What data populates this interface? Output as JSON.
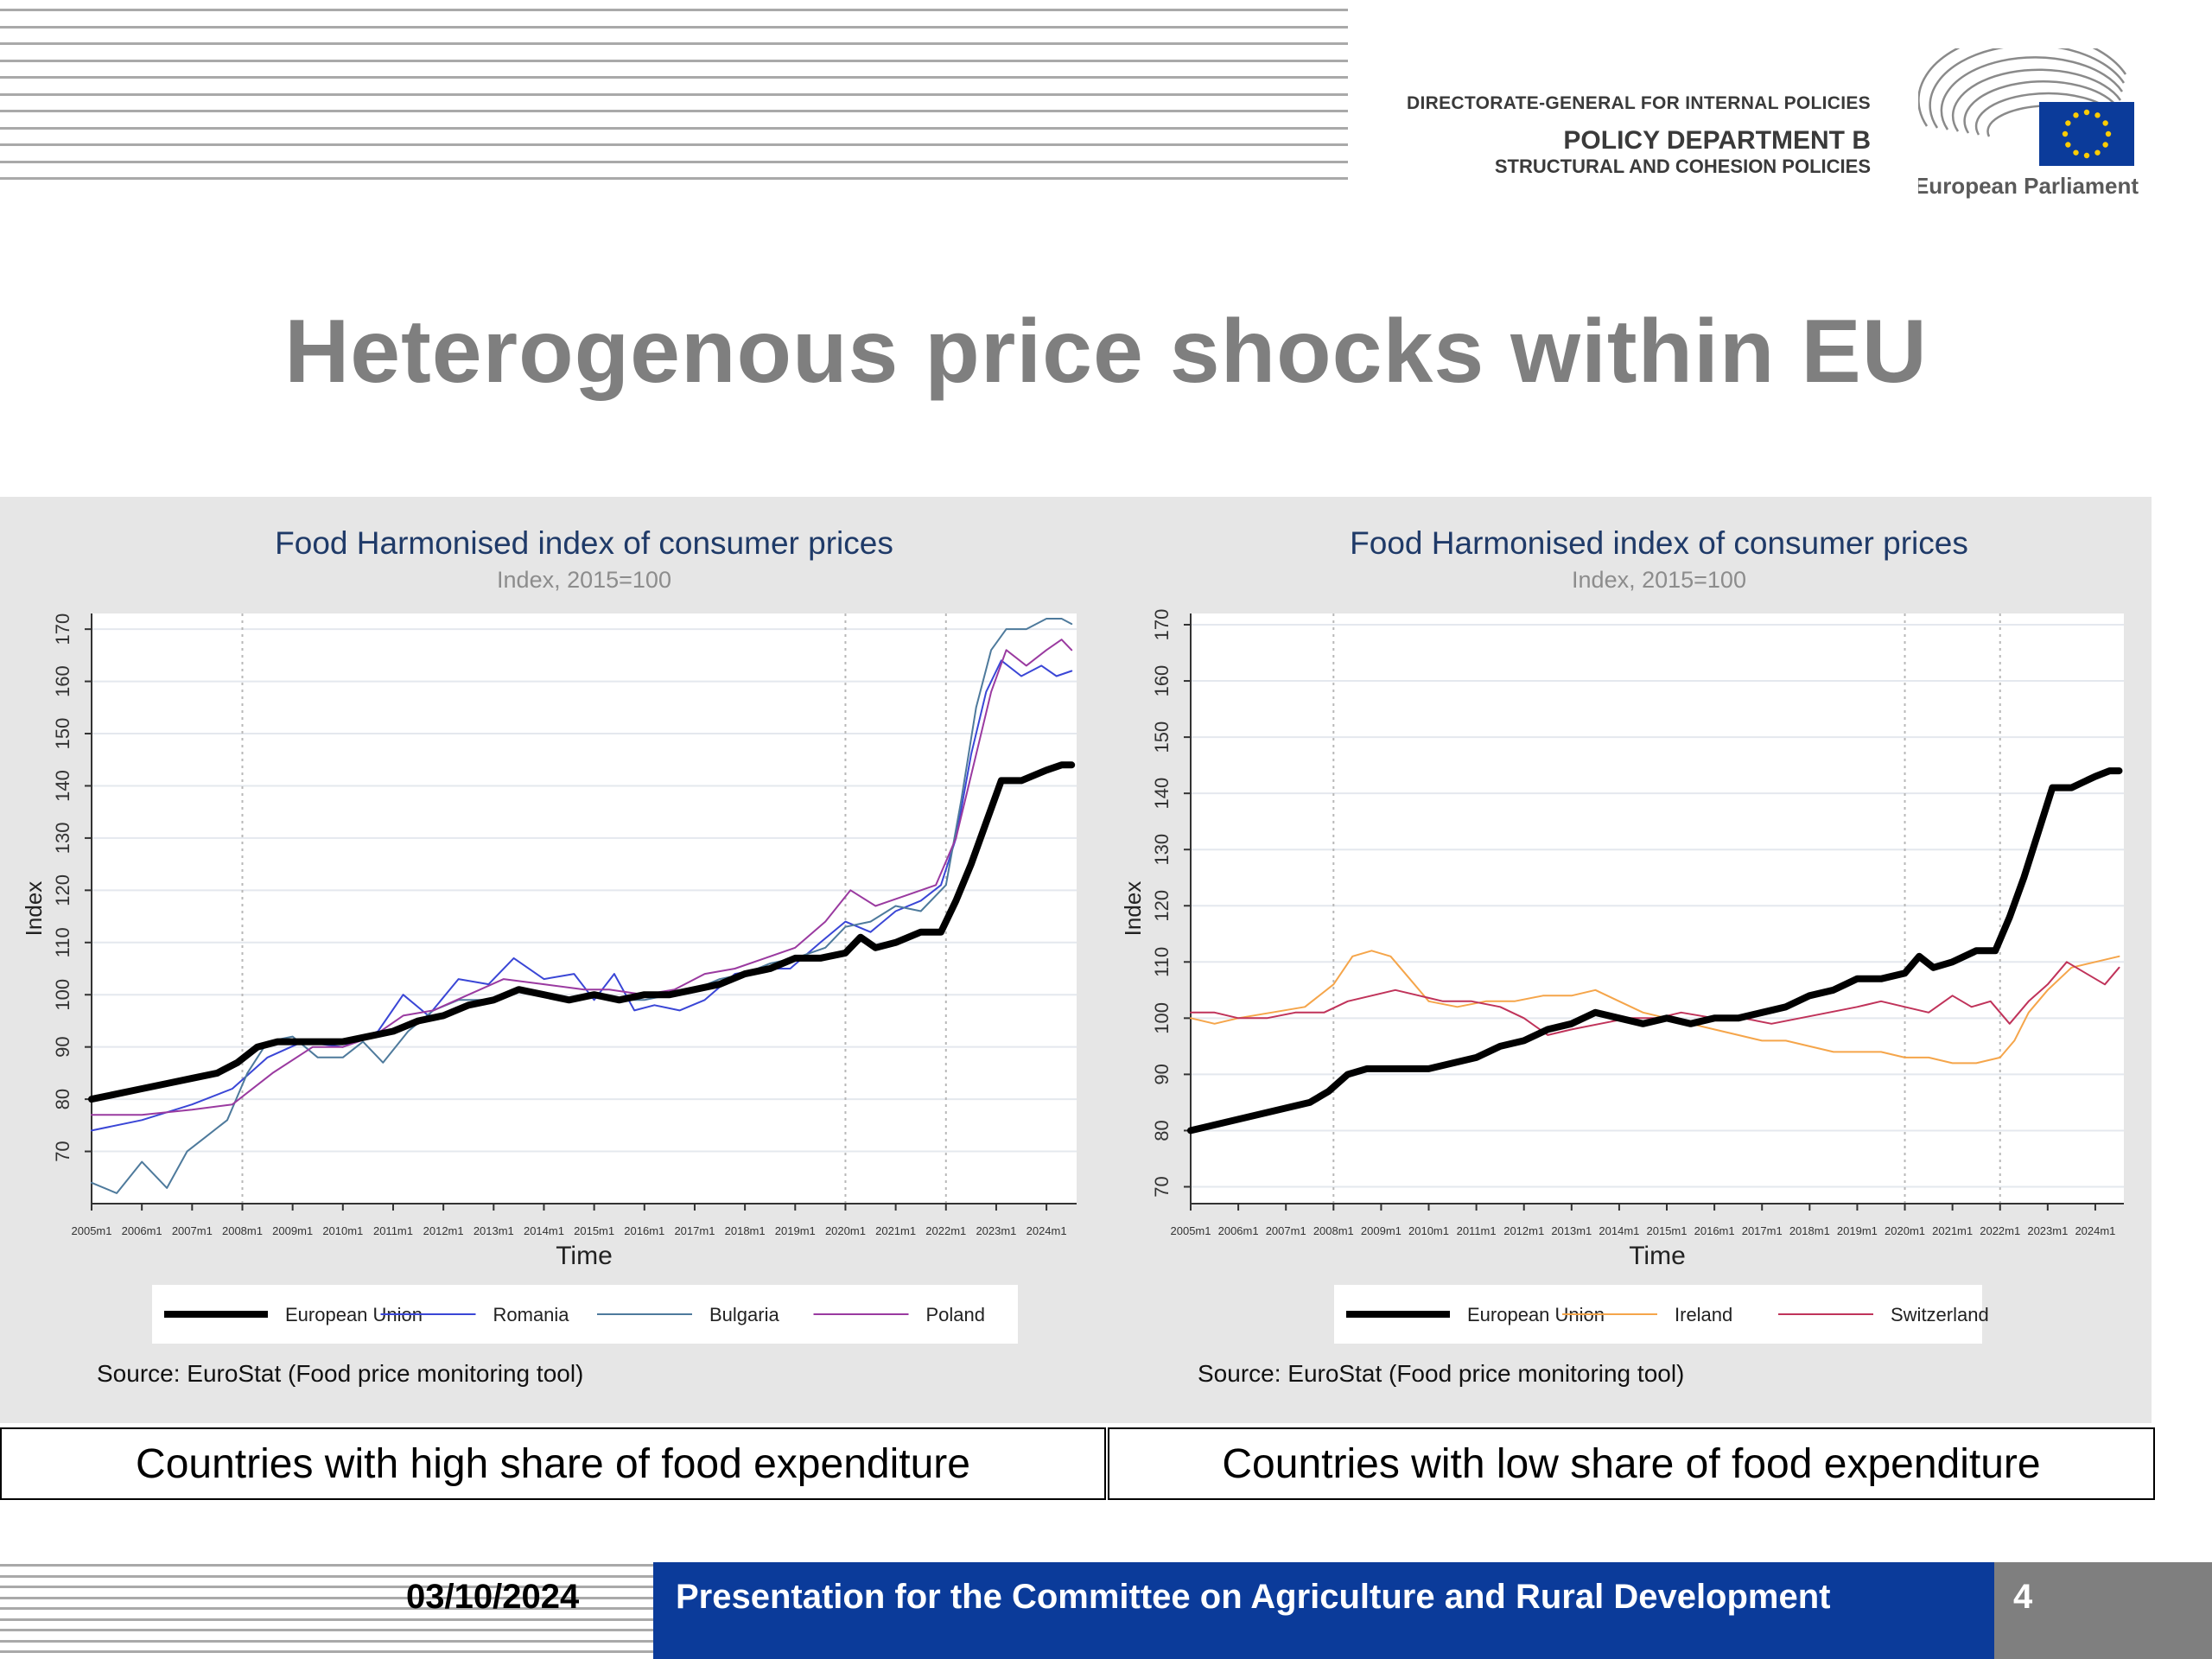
{
  "header": {
    "dg_label": "DIRECTORATE-GENERAL FOR INTERNAL POLICIES",
    "dept_label": "POLICY DEPARTMENT B",
    "dept_sub_label": "STRUCTURAL AND COHESION POLICIES",
    "logo_text": "European Parliament",
    "colors": {
      "flag_blue": "#0b3b9a",
      "stars": "#ffcc00",
      "stripes": "#a9a9a9"
    }
  },
  "slide": {
    "title": "Heterogenous price shocks within EU"
  },
  "captions": {
    "left": "Countries with high share of food expenditure",
    "right": "Countries with low share of food expenditure"
  },
  "footer": {
    "date": "03/10/2024",
    "title": "Presentation for the Committee on Agriculture and Rural Development",
    "page_number": "4"
  },
  "chart_data": [
    {
      "type": "line",
      "title": "Food Harmonised index of consumer prices",
      "subtitle": "Index, 2015=100",
      "xlabel": "Time",
      "ylabel": "Index",
      "source": "Source: EuroStat (Food price monitoring tool)",
      "xlim": [
        2005.0,
        2024.6
      ],
      "ylim": [
        60,
        173
      ],
      "yticks": [
        70,
        80,
        90,
        100,
        110,
        120,
        130,
        140,
        150,
        160,
        170
      ],
      "x_tick_labels": [
        "2005m1",
        "2006m1",
        "2007m1",
        "2008m1",
        "2009m1",
        "2010m1",
        "2011m1",
        "2012m1",
        "2013m1",
        "2014m1",
        "2015m1",
        "2016m1",
        "2017m1",
        "2018m1",
        "2019m1",
        "2020m1",
        "2021m1",
        "2022m1",
        "2023m1",
        "2024m1"
      ],
      "dashed_verticals": [
        2008.0,
        2020.0,
        2022.0
      ],
      "grid": true,
      "legend_position": "bottom",
      "series": [
        {
          "name": "Romania",
          "color": "#3a46d6",
          "width": 2,
          "x": [
            2005,
            2006,
            2007,
            2007.8,
            2008.5,
            2009.2,
            2010,
            2010.7,
            2011.2,
            2011.7,
            2012.3,
            2012.9,
            2013.4,
            2014,
            2014.6,
            2015,
            2015.4,
            2015.8,
            2016.2,
            2016.7,
            2017.2,
            2017.8,
            2018.4,
            2018.9,
            2019.5,
            2020,
            2020.5,
            2021,
            2021.5,
            2021.9,
            2022.2,
            2022.5,
            2022.8,
            2023.1,
            2023.5,
            2023.9,
            2024.2,
            2024.5
          ],
          "y": [
            74,
            76,
            79,
            82,
            88,
            91,
            90,
            93,
            100,
            96,
            103,
            102,
            107,
            103,
            104,
            99,
            104,
            97,
            98,
            97,
            99,
            104,
            105,
            105,
            110,
            114,
            112,
            116,
            118,
            121,
            130,
            146,
            158,
            164,
            161,
            163,
            161,
            162
          ]
        },
        {
          "name": "Bulgaria",
          "color": "#4e7a9c",
          "width": 2,
          "x": [
            2005,
            2005.5,
            2006,
            2006.5,
            2006.9,
            2007.3,
            2007.7,
            2008.1,
            2008.5,
            2009,
            2009.5,
            2010,
            2010.4,
            2010.8,
            2011.3,
            2011.8,
            2012.3,
            2013,
            2013.6,
            2014,
            2014.6,
            2015,
            2015.5,
            2016,
            2016.5,
            2017,
            2017.5,
            2018,
            2018.5,
            2019,
            2019.6,
            2020,
            2020.5,
            2021,
            2021.5,
            2022,
            2022.3,
            2022.6,
            2022.9,
            2023.2,
            2023.6,
            2024,
            2024.3,
            2024.5
          ],
          "y": [
            64,
            62,
            68,
            63,
            70,
            73,
            76,
            85,
            91,
            92,
            88,
            88,
            91,
            87,
            93,
            97,
            99,
            99,
            101,
            100,
            99,
            100,
            99,
            99,
            100,
            101,
            103,
            104,
            106,
            107,
            109,
            113,
            114,
            117,
            116,
            121,
            137,
            155,
            166,
            170,
            170,
            172,
            172,
            171
          ]
        },
        {
          "name": "Poland",
          "color": "#9a3aa0",
          "width": 2,
          "x": [
            2005,
            2006,
            2007,
            2007.8,
            2008.6,
            2009.4,
            2010,
            2010.6,
            2011.2,
            2011.8,
            2012.5,
            2013.2,
            2014,
            2014.8,
            2015.3,
            2016,
            2016.6,
            2017.2,
            2017.8,
            2018.4,
            2019,
            2019.6,
            2020.1,
            2020.6,
            2021.2,
            2021.8,
            2022.2,
            2022.6,
            2022.9,
            2023.2,
            2023.6,
            2024,
            2024.3,
            2024.5
          ],
          "y": [
            77,
            77,
            78,
            79,
            85,
            90,
            90,
            92,
            96,
            97,
            100,
            103,
            102,
            101,
            101,
            100,
            101,
            104,
            105,
            107,
            109,
            114,
            120,
            117,
            119,
            121,
            130,
            146,
            158,
            166,
            163,
            166,
            168,
            166
          ]
        },
        {
          "name": "European Union",
          "color": "#000000",
          "width": 8,
          "x": [
            2005,
            2005.5,
            2006,
            2006.5,
            2007,
            2007.5,
            2007.9,
            2008.3,
            2008.7,
            2009,
            2009.5,
            2010,
            2010.5,
            2011,
            2011.5,
            2012,
            2012.5,
            2013,
            2013.5,
            2014,
            2014.5,
            2015,
            2015.5,
            2016,
            2016.5,
            2017,
            2017.5,
            2018,
            2018.5,
            2019,
            2019.5,
            2020,
            2020.3,
            2020.6,
            2021,
            2021.5,
            2021.9,
            2022.2,
            2022.5,
            2022.8,
            2023.1,
            2023.5,
            2024,
            2024.3,
            2024.5
          ],
          "y": [
            80,
            81,
            82,
            83,
            84,
            85,
            87,
            90,
            91,
            91,
            91,
            91,
            92,
            93,
            95,
            96,
            98,
            99,
            101,
            100,
            99,
            100,
            99,
            100,
            100,
            101,
            102,
            104,
            105,
            107,
            107,
            108,
            111,
            109,
            110,
            112,
            112,
            118,
            125,
            133,
            141,
            141,
            143,
            144,
            144
          ]
        }
      ]
    },
    {
      "type": "line",
      "title": "Food Harmonised index of consumer prices",
      "subtitle": "Index, 2015=100",
      "xlabel": "Time",
      "ylabel": "Index",
      "source": "Source: EuroStat (Food price monitoring tool)",
      "xlim": [
        2005.0,
        2024.6
      ],
      "ylim": [
        67,
        172
      ],
      "yticks": [
        70,
        80,
        90,
        100,
        110,
        120,
        130,
        140,
        150,
        160,
        170
      ],
      "x_tick_labels": [
        "2005m1",
        "2006m1",
        "2007m1",
        "2008m1",
        "2009m1",
        "2010m1",
        "2011m1",
        "2012m1",
        "2013m1",
        "2014m1",
        "2015m1",
        "2016m1",
        "2017m1",
        "2018m1",
        "2019m1",
        "2020m1",
        "2021m1",
        "2022m1",
        "2023m1",
        "2024m1"
      ],
      "dashed_verticals": [
        2008.0,
        2020.0,
        2022.0
      ],
      "grid": true,
      "legend_position": "bottom",
      "series": [
        {
          "name": "Ireland",
          "color": "#f5a54a",
          "width": 2,
          "x": [
            2005,
            2005.5,
            2006,
            2006.7,
            2007.4,
            2008,
            2008.4,
            2008.8,
            2009.2,
            2009.6,
            2010,
            2010.6,
            2011.2,
            2011.8,
            2012.4,
            2013,
            2013.5,
            2014,
            2014.5,
            2015,
            2015.5,
            2016,
            2016.5,
            2017,
            2017.5,
            2018,
            2018.5,
            2019,
            2019.5,
            2020,
            2020.5,
            2021,
            2021.5,
            2022,
            2022.3,
            2022.6,
            2023,
            2023.5,
            2024,
            2024.5
          ],
          "y": [
            100,
            99,
            100,
            101,
            102,
            106,
            111,
            112,
            111,
            107,
            103,
            102,
            103,
            103,
            104,
            104,
            105,
            103,
            101,
            100,
            99,
            98,
            97,
            96,
            96,
            95,
            94,
            94,
            94,
            93,
            93,
            92,
            92,
            93,
            96,
            101,
            105,
            109,
            110,
            111
          ]
        },
        {
          "name": "Switzerland",
          "color": "#c0335a",
          "width": 2,
          "x": [
            2005,
            2005.5,
            2006,
            2006.6,
            2007.2,
            2007.8,
            2008.3,
            2008.8,
            2009.3,
            2009.8,
            2010.3,
            2010.9,
            2011.5,
            2012,
            2012.5,
            2013,
            2013.6,
            2014.2,
            2014.8,
            2015.3,
            2016,
            2016.6,
            2017.2,
            2017.8,
            2018.4,
            2019,
            2019.5,
            2020,
            2020.5,
            2021,
            2021.4,
            2021.8,
            2022.2,
            2022.6,
            2023,
            2023.4,
            2023.8,
            2024.2,
            2024.5
          ],
          "y": [
            101,
            101,
            100,
            100,
            101,
            101,
            103,
            104,
            105,
            104,
            103,
            103,
            102,
            100,
            97,
            98,
            99,
            100,
            100,
            101,
            100,
            100,
            99,
            100,
            101,
            102,
            103,
            102,
            101,
            104,
            102,
            103,
            99,
            103,
            106,
            110,
            108,
            106,
            109
          ]
        },
        {
          "name": "European Union",
          "color": "#000000",
          "width": 8,
          "x": [
            2005,
            2005.5,
            2006,
            2006.5,
            2007,
            2007.5,
            2007.9,
            2008.3,
            2008.7,
            2009,
            2009.5,
            2010,
            2010.5,
            2011,
            2011.5,
            2012,
            2012.5,
            2013,
            2013.5,
            2014,
            2014.5,
            2015,
            2015.5,
            2016,
            2016.5,
            2017,
            2017.5,
            2018,
            2018.5,
            2019,
            2019.5,
            2020,
            2020.3,
            2020.6,
            2021,
            2021.5,
            2021.9,
            2022.2,
            2022.5,
            2022.8,
            2023.1,
            2023.5,
            2024,
            2024.3,
            2024.5
          ],
          "y": [
            80,
            81,
            82,
            83,
            84,
            85,
            87,
            90,
            91,
            91,
            91,
            91,
            92,
            93,
            95,
            96,
            98,
            99,
            101,
            100,
            99,
            100,
            99,
            100,
            100,
            101,
            102,
            104,
            105,
            107,
            107,
            108,
            111,
            109,
            110,
            112,
            112,
            118,
            125,
            133,
            141,
            141,
            143,
            144,
            144
          ]
        }
      ]
    }
  ]
}
